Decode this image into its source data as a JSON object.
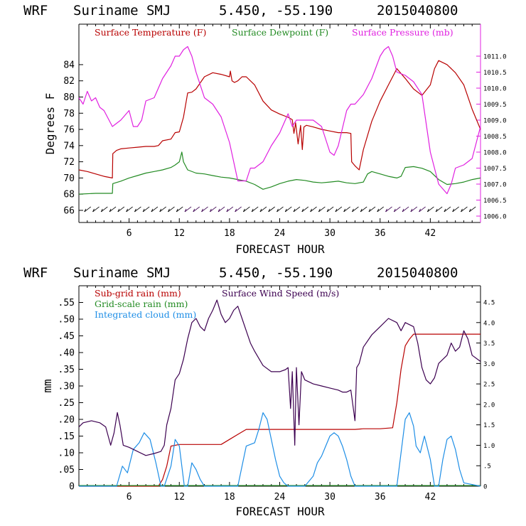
{
  "header_top": {
    "model": "WRF",
    "location": "Suriname SMJ",
    "coords": "5.450, -55.190",
    "run": "2015040800"
  },
  "header_bottom": {
    "model": "WRF",
    "location": "Suriname SMJ",
    "coords": "5.450, -55.190",
    "run": "2015040800"
  },
  "colors": {
    "temp": "#b80000",
    "dew": "#238b23",
    "pres": "#e020e0",
    "subrain": "#b80000",
    "gridrain": "#238b23",
    "cloud": "#1e8ee6",
    "wind": "#3c0050",
    "pres_axis": "#e020e0"
  },
  "chart_data": [
    {
      "type": "line",
      "title": "",
      "xlabel": "FORECAST HOUR",
      "ylabel": "Degrees F",
      "xlim": [
        0,
        48
      ],
      "ylim": [
        64.5,
        89
      ],
      "y2lim": [
        1005.8,
        1012.0
      ],
      "x_ticks": [
        6,
        12,
        18,
        24,
        30,
        36,
        42
      ],
      "x_tick_labels": [
        "6",
        "12",
        "18",
        "24",
        "30",
        "36",
        "42"
      ],
      "y_ticks": [
        66,
        68,
        70,
        72,
        74,
        76,
        78,
        80,
        82,
        84
      ],
      "y_tick_labels": [
        "66",
        "68",
        "70",
        "72",
        "74",
        "76",
        "78",
        "80",
        "82",
        "84"
      ],
      "y2_ticks": [
        1006.0,
        1006.5,
        1007.0,
        1007.5,
        1008.0,
        1008.5,
        1009.0,
        1009.5,
        1010.0,
        1010.5,
        1011.0
      ],
      "y2_tick_labels": [
        "1006.0",
        "1006.5",
        "1007.0",
        "1007.5",
        "1008.0",
        "1008.5",
        "1009.0",
        "1009.5",
        "1010.0",
        "1010.5",
        "1011.0"
      ],
      "legend": [
        "Surface Temperature (F)",
        "Surface Dewpoint (F)",
        "Surface Pressure (mb)"
      ],
      "series": [
        {
          "name": "Surface Temperature (F)",
          "axis": "left",
          "x": [
            0,
            1,
            2,
            3,
            4,
            4.05,
            4.5,
            5,
            6,
            7,
            8,
            9,
            9.5,
            10,
            11,
            11.5,
            12,
            12.5,
            13,
            13.5,
            14,
            15,
            16,
            17,
            18,
            18.1,
            18.3,
            18.6,
            19,
            19.5,
            20,
            21,
            22,
            23,
            24,
            25,
            25.5,
            25.7,
            25.9,
            26.2,
            26.5,
            26.7,
            26.9,
            27.2,
            28,
            29,
            30,
            31,
            32,
            32.5,
            32.6,
            33,
            33.5,
            34,
            35,
            36,
            37,
            37.5,
            38,
            39,
            40,
            41,
            42,
            42.5,
            43,
            44,
            45,
            46,
            47,
            48
          ],
          "values": [
            71.0,
            70.8,
            70.5,
            70.2,
            70.0,
            73.0,
            73.4,
            73.6,
            73.7,
            73.8,
            73.9,
            73.9,
            74.0,
            74.6,
            74.8,
            75.6,
            75.7,
            77.5,
            80.5,
            80.6,
            81.0,
            82.5,
            83.0,
            82.8,
            82.5,
            83.2,
            82.0,
            81.8,
            82.0,
            82.5,
            82.5,
            81.5,
            79.5,
            78.4,
            77.9,
            77.5,
            77.2,
            75.5,
            76.8,
            74.2,
            76.5,
            73.5,
            76.3,
            76.5,
            76.3,
            76.0,
            75.8,
            75.6,
            75.6,
            75.5,
            72.0,
            71.5,
            71.0,
            73.5,
            77.0,
            79.5,
            81.5,
            82.5,
            83.5,
            82.3,
            81.0,
            80.2,
            81.5,
            83.5,
            84.5,
            84.0,
            83.0,
            81.5,
            78.5,
            76.0
          ]
        },
        {
          "name": "Surface Dewpoint (F)",
          "axis": "left",
          "x": [
            0,
            2,
            4,
            4.05,
            5,
            6,
            7,
            8,
            9,
            10,
            11,
            11.5,
            12,
            12.3,
            12.5,
            13,
            14,
            15,
            16,
            17,
            18,
            19,
            20,
            21,
            22,
            23,
            24,
            25,
            26,
            27,
            28,
            29,
            30,
            31,
            32,
            33,
            34,
            34.5,
            35,
            36,
            37,
            38,
            38.5,
            39,
            40,
            41,
            42,
            43,
            44,
            45,
            46,
            47,
            48
          ],
          "values": [
            68.0,
            68.1,
            68.1,
            69.3,
            69.6,
            70.0,
            70.3,
            70.6,
            70.8,
            71.0,
            71.3,
            71.6,
            72.0,
            73.2,
            72.0,
            71.0,
            70.6,
            70.5,
            70.3,
            70.1,
            70.0,
            69.8,
            69.6,
            69.2,
            68.6,
            68.9,
            69.3,
            69.6,
            69.8,
            69.7,
            69.5,
            69.4,
            69.5,
            69.6,
            69.4,
            69.3,
            69.5,
            70.5,
            70.8,
            70.5,
            70.2,
            70.0,
            70.2,
            71.3,
            71.4,
            71.2,
            70.8,
            69.8,
            69.2,
            69.3,
            69.5,
            69.8,
            70.0
          ]
        },
        {
          "name": "Surface Pressure (mb)",
          "axis": "right",
          "x": [
            0,
            0.5,
            1,
            1.5,
            2,
            2.5,
            3,
            4,
            5,
            6,
            6.5,
            7,
            7.5,
            8,
            9,
            9.5,
            10,
            11,
            11.5,
            12,
            12.5,
            13,
            13.5,
            14,
            15,
            16,
            17,
            18,
            19,
            20,
            20.5,
            21,
            22,
            23,
            24,
            25,
            25.5,
            26,
            27,
            28,
            29,
            30,
            30.5,
            31,
            32,
            32.5,
            33,
            34,
            35,
            36,
            36.5,
            37,
            37.5,
            38,
            39,
            40,
            41,
            42,
            43,
            44,
            44.5,
            45,
            46,
            47,
            48
          ],
          "values": [
            1009.7,
            1009.5,
            1009.9,
            1009.6,
            1009.7,
            1009.4,
            1009.3,
            1008.8,
            1009.0,
            1009.3,
            1008.8,
            1008.8,
            1009.0,
            1009.6,
            1009.7,
            1010.0,
            1010.3,
            1010.7,
            1011.0,
            1011.0,
            1011.2,
            1011.3,
            1011.0,
            1010.5,
            1009.7,
            1009.5,
            1009.1,
            1008.3,
            1007.1,
            1007.1,
            1007.5,
            1007.5,
            1007.7,
            1008.2,
            1008.6,
            1009.2,
            1008.8,
            1009.0,
            1009.0,
            1009.0,
            1008.8,
            1008.0,
            1007.9,
            1008.2,
            1009.3,
            1009.5,
            1009.5,
            1009.8,
            1010.3,
            1011.0,
            1011.2,
            1011.3,
            1011.0,
            1010.5,
            1010.4,
            1010.2,
            1009.8,
            1008.0,
            1007.0,
            1006.7,
            1007.0,
            1007.5,
            1007.6,
            1007.8,
            1008.8
          ]
        }
      ],
      "wind_barbs": {
        "y_level": 66
      }
    },
    {
      "type": "line",
      "title": "",
      "xlabel": "FORECAST HOUR",
      "ylabel": "mm",
      "xlim": [
        0,
        48
      ],
      "ylim": [
        0,
        0.6
      ],
      "y2lim": [
        0,
        4.9
      ],
      "x_ticks": [
        6,
        12,
        18,
        24,
        30,
        36,
        42
      ],
      "x_tick_labels": [
        "6",
        "12",
        "18",
        "24",
        "30",
        "36",
        "42"
      ],
      "y_ticks": [
        0,
        0.05,
        0.1,
        0.15,
        0.2,
        0.25,
        0.3,
        0.35,
        0.4,
        0.45,
        0.5,
        0.55
      ],
      "y_tick_labels": [
        "0",
        ".05",
        ".10",
        ".15",
        ".20",
        ".25",
        ".30",
        ".35",
        ".40",
        ".45",
        ".50",
        ".55"
      ],
      "y2_ticks": [
        0,
        0.5,
        1.0,
        1.5,
        2.0,
        2.5,
        3.0,
        3.5,
        4.0,
        4.5
      ],
      "y2_tick_labels": [
        "0",
        ".5",
        "1.0",
        "1.5",
        "2.0",
        "2.5",
        "3.0",
        "3.5",
        "4.0",
        "4.5"
      ],
      "legend": [
        "Sub-grid rain (mm)",
        "Surface Wind Speed (m/s)",
        "Grid-scale rain (mm)",
        "Integrated cloud (mm)"
      ],
      "series": [
        {
          "name": "Sub-grid rain (mm)",
          "axis": "left",
          "x": [
            0,
            9.5,
            10,
            10.5,
            11,
            12,
            13,
            16,
            17,
            18,
            19,
            20,
            21,
            22,
            24,
            26,
            30,
            33,
            34,
            36,
            37.5,
            38,
            38.5,
            39,
            39.5,
            40,
            48
          ],
          "values": [
            0,
            0,
            0.02,
            0.06,
            0.12,
            0.125,
            0.125,
            0.125,
            0.125,
            0.14,
            0.155,
            0.17,
            0.17,
            0.17,
            0.17,
            0.17,
            0.17,
            0.17,
            0.172,
            0.172,
            0.175,
            0.25,
            0.35,
            0.42,
            0.44,
            0.455,
            0.455
          ]
        },
        {
          "name": "Grid-scale rain (mm)",
          "axis": "left",
          "x": [
            0,
            48
          ],
          "values": [
            0.002,
            0.002
          ]
        },
        {
          "name": "Integrated cloud (mm)",
          "axis": "left",
          "x": [
            0,
            4.5,
            5.2,
            5.8,
            6.5,
            7.2,
            7.8,
            8.5,
            9.2,
            9.8,
            10.2,
            11,
            11.5,
            12,
            12.6,
            13,
            13.5,
            14,
            14.5,
            15,
            19,
            19.5,
            20,
            21,
            21.5,
            22,
            22.5,
            23,
            23.5,
            24,
            24.5,
            25,
            25.5,
            26,
            27,
            28,
            28.5,
            29,
            29.5,
            30,
            30.5,
            31,
            31.5,
            32,
            32.5,
            33,
            38,
            38.5,
            39,
            39.5,
            40,
            40.3,
            40.8,
            41.3,
            42,
            42.5,
            43,
            43.5,
            44,
            44.5,
            45,
            45.5,
            46,
            48
          ],
          "values": [
            0,
            0,
            0.06,
            0.04,
            0.11,
            0.13,
            0.16,
            0.14,
            0.07,
            0.0,
            0.0,
            0.06,
            0.14,
            0.12,
            0.0,
            0.0,
            0.07,
            0.05,
            0.02,
            0.0,
            0.0,
            0.06,
            0.12,
            0.13,
            0.17,
            0.22,
            0.2,
            0.14,
            0.08,
            0.03,
            0.01,
            0.0,
            0.0,
            0.0,
            0.0,
            0.03,
            0.07,
            0.09,
            0.12,
            0.15,
            0.16,
            0.15,
            0.12,
            0.08,
            0.03,
            0.0,
            0.0,
            0.1,
            0.2,
            0.22,
            0.18,
            0.12,
            0.1,
            0.15,
            0.08,
            0.0,
            0.0,
            0.08,
            0.14,
            0.15,
            0.11,
            0.05,
            0.01,
            0.0
          ]
        },
        {
          "name": "Surface Wind Speed (m/s)",
          "axis": "right",
          "x": [
            0,
            0.5,
            1.5,
            2.5,
            3.2,
            3.8,
            4.2,
            4.6,
            4.9,
            5.3,
            6,
            7,
            8,
            9,
            9.8,
            10.2,
            10.5,
            11,
            11.5,
            12,
            12.5,
            13,
            13.5,
            14,
            14.5,
            15,
            15.5,
            16,
            16.5,
            17,
            17.5,
            18,
            18.5,
            19,
            19.5,
            20,
            20.5,
            21,
            22,
            23,
            24,
            24.7,
            25,
            25.3,
            25.5,
            25.8,
            26,
            26.3,
            26.6,
            27,
            28,
            29,
            30,
            31,
            31.5,
            32,
            32.5,
            33,
            33.2,
            33.5,
            34,
            35,
            36,
            37,
            38,
            38.5,
            39,
            40,
            40.5,
            41,
            41.5,
            42,
            42.5,
            43,
            44,
            44.5,
            45,
            45.5,
            46,
            46.5,
            47,
            48
          ],
          "values": [
            1.45,
            1.55,
            1.6,
            1.55,
            1.45,
            1.0,
            1.3,
            1.8,
            1.5,
            1.0,
            0.95,
            0.85,
            0.75,
            0.8,
            0.85,
            1.0,
            1.5,
            1.9,
            2.6,
            2.75,
            3.1,
            3.6,
            4.0,
            4.1,
            3.9,
            3.8,
            4.1,
            4.3,
            4.55,
            4.2,
            4.0,
            4.1,
            4.3,
            4.4,
            4.1,
            3.8,
            3.5,
            3.3,
            2.95,
            2.8,
            2.8,
            2.85,
            2.9,
            1.9,
            2.8,
            1.0,
            2.9,
            1.5,
            2.8,
            2.6,
            2.5,
            2.45,
            2.4,
            2.35,
            2.3,
            2.3,
            2.35,
            1.6,
            2.9,
            3.0,
            3.4,
            3.7,
            3.9,
            4.1,
            4.0,
            3.8,
            4.0,
            3.9,
            3.5,
            2.9,
            2.6,
            2.5,
            2.65,
            3.0,
            3.2,
            3.5,
            3.3,
            3.4,
            3.8,
            3.6,
            3.2,
            3.05
          ]
        }
      ]
    }
  ]
}
